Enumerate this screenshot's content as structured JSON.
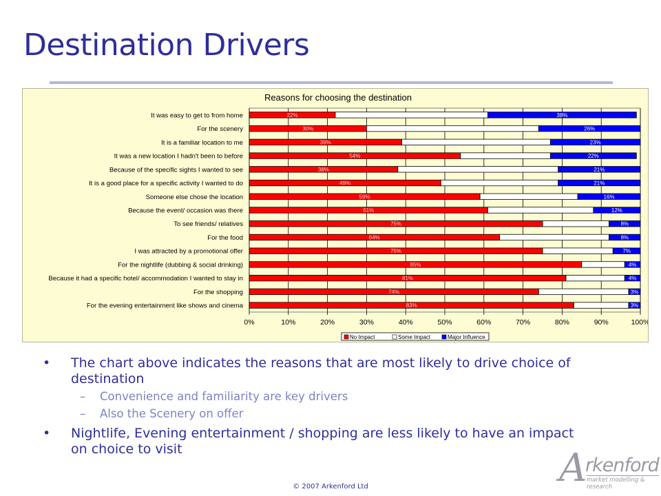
{
  "slide": {
    "title": "Destination Drivers",
    "footer": "© 2007 Arkenford Ltd"
  },
  "bullets": {
    "b1": "The chart above indicates the reasons that are most likely to drive choice of destination",
    "b1_sub1": "Convenience and familiarity are key drivers",
    "b1_sub2": "Also the Scenery on offer",
    "b2": "Nightlife, Evening entertainment / shopping are less likely to have an impact on choice to visit",
    "bullet_char": "•",
    "dash_char": "–"
  },
  "logo": {
    "letter": "A",
    "word": "rkenford",
    "tagline": "market modelling & research"
  },
  "colors": {
    "no_impact": "#ff0000",
    "some_impact": "#ffffff",
    "major_influence": "#0000ff",
    "chart_bg": "#fdfcd3"
  },
  "chart_data": {
    "type": "bar",
    "orientation": "horizontal",
    "stacked": "100%",
    "title": "Reasons for choosing the destination",
    "categories": [
      "It was easy to get to from home",
      "For the scenery",
      "It is a familiar location to me",
      "It was a new location I hadn't been to before",
      "Because of the specific sights I wanted to see",
      "It is a good place for a specific activity I wanted to do",
      "Someone else chose the location",
      "Because the event/ occasion was there",
      "To see friends/ relatives",
      "For the food",
      "I was attracted by a promotional offer",
      "For the nightlife (dubbing & social drinking)",
      "Because it had a specific hotel/ accommodation I wanted to stay in",
      "For the shopping",
      "For the evening entertainment like shows and cinema"
    ],
    "series": [
      {
        "name": "No Impact",
        "values": [
          22,
          30,
          39,
          54,
          38,
          49,
          59,
          61,
          75,
          64,
          75,
          85,
          81,
          74,
          83
        ],
        "labels": [
          "22%",
          "30%",
          "39%",
          "54%",
          "38%",
          "49%",
          "59%",
          "61%",
          "75%",
          "64%",
          "75%",
          "85%",
          "81%",
          "74%",
          "83%"
        ]
      },
      {
        "name": "Some Impact",
        "values": [
          39,
          44,
          38,
          23,
          41,
          30,
          25,
          27,
          17,
          28,
          18,
          11,
          15,
          23,
          14
        ]
      },
      {
        "name": "Major Influence",
        "values": [
          38,
          26,
          23,
          22,
          21,
          21,
          16,
          12,
          8,
          8,
          7,
          4,
          4,
          3,
          3
        ],
        "labels": [
          "38%",
          "26%",
          "23%",
          "22%",
          "21%",
          "21%",
          "16%",
          "12%",
          "8%",
          "8%",
          "7%",
          "4%",
          "4%",
          "3%",
          "3%"
        ]
      }
    ],
    "xticks": [
      "0%",
      "10%",
      "20%",
      "30%",
      "40%",
      "50%",
      "60%",
      "70%",
      "80%",
      "90%",
      "100%"
    ],
    "xlim": [
      0,
      100
    ],
    "grid": "vertical",
    "legend": "bottom-center"
  }
}
